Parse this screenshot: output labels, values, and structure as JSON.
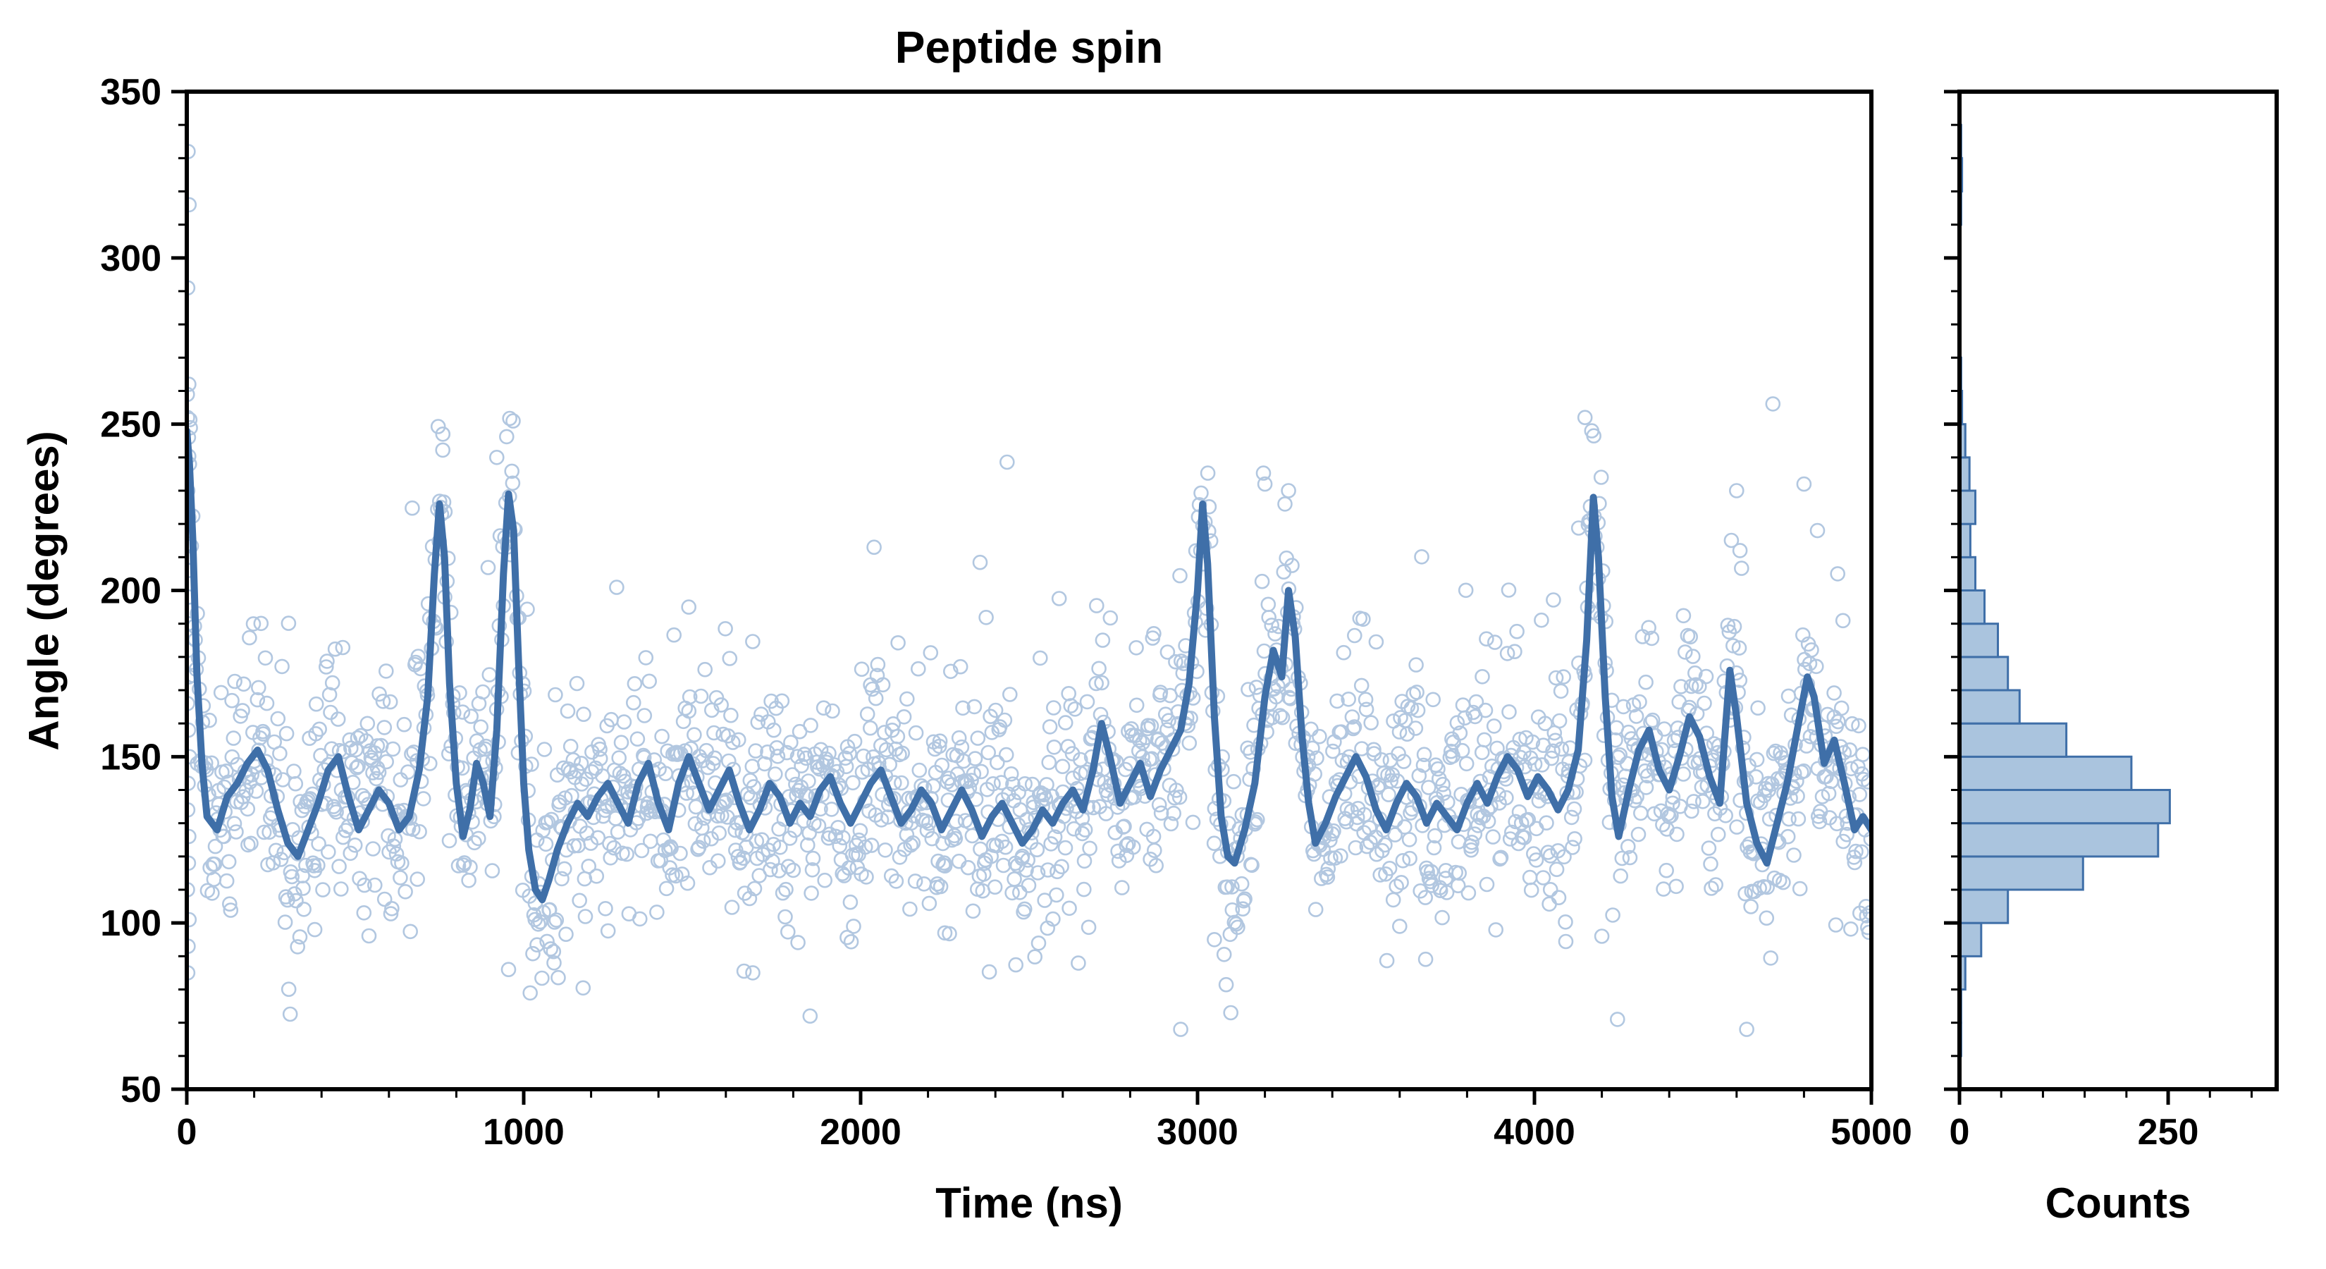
{
  "figure": {
    "title": "Peptide spin",
    "background": "#ffffff"
  },
  "colors": {
    "scatter_edge": "#7fa3cd",
    "trend_line": "#3f6fa8",
    "hist_fill": "#aac4de",
    "hist_edge": "#3f6fa8",
    "axis": "#000000"
  },
  "main_plot": {
    "xlabel": "Time (ns)",
    "ylabel": "Angle (degrees)",
    "xlim": [
      0,
      5000
    ],
    "ylim": [
      50,
      350
    ],
    "xticks": [
      0,
      1000,
      2000,
      3000,
      4000,
      5000
    ],
    "yticks": [
      50,
      100,
      150,
      200,
      250,
      300,
      350
    ],
    "x_minor_step": 200,
    "y_minor_step": 10
  },
  "hist_plot": {
    "xlabel": "Counts",
    "xlim": [
      0,
      380
    ],
    "xticks": [
      0,
      250
    ],
    "x_minor_step": 50
  },
  "chart_data": {
    "type": "scatter",
    "title": "Peptide spin",
    "xlabel": "Time (ns)",
    "ylabel": "Angle (degrees)",
    "xlim": [
      0,
      5000
    ],
    "ylim": [
      50,
      350
    ],
    "legend": "none",
    "grid": false,
    "series_description": "Raw angle samples (hollow circles), running-average trend line, and marginal histogram of angle counts",
    "line_series": {
      "name": "smoothed-angle",
      "points": [
        [
          0,
          248
        ],
        [
          8,
          238
        ],
        [
          18,
          215
        ],
        [
          30,
          175
        ],
        [
          45,
          148
        ],
        [
          60,
          132
        ],
        [
          90,
          128
        ],
        [
          120,
          138
        ],
        [
          150,
          142
        ],
        [
          180,
          148
        ],
        [
          210,
          152
        ],
        [
          240,
          146
        ],
        [
          270,
          134
        ],
        [
          300,
          124
        ],
        [
          330,
          120
        ],
        [
          360,
          128
        ],
        [
          390,
          136
        ],
        [
          420,
          146
        ],
        [
          450,
          150
        ],
        [
          480,
          138
        ],
        [
          510,
          128
        ],
        [
          540,
          134
        ],
        [
          570,
          140
        ],
        [
          600,
          136
        ],
        [
          630,
          128
        ],
        [
          660,
          132
        ],
        [
          690,
          146
        ],
        [
          715,
          168
        ],
        [
          735,
          205
        ],
        [
          750,
          226
        ],
        [
          765,
          210
        ],
        [
          780,
          172
        ],
        [
          800,
          142
        ],
        [
          820,
          126
        ],
        [
          840,
          134
        ],
        [
          860,
          148
        ],
        [
          880,
          142
        ],
        [
          900,
          132
        ],
        [
          920,
          158
        ],
        [
          940,
          205
        ],
        [
          955,
          229
        ],
        [
          970,
          218
        ],
        [
          985,
          178
        ],
        [
          1000,
          142
        ],
        [
          1015,
          122
        ],
        [
          1035,
          110
        ],
        [
          1055,
          107
        ],
        [
          1075,
          113
        ],
        [
          1100,
          122
        ],
        [
          1130,
          130
        ],
        [
          1160,
          136
        ],
        [
          1190,
          132
        ],
        [
          1220,
          138
        ],
        [
          1250,
          142
        ],
        [
          1280,
          136
        ],
        [
          1310,
          130
        ],
        [
          1340,
          142
        ],
        [
          1370,
          148
        ],
        [
          1400,
          136
        ],
        [
          1430,
          128
        ],
        [
          1460,
          142
        ],
        [
          1490,
          150
        ],
        [
          1520,
          142
        ],
        [
          1550,
          134
        ],
        [
          1580,
          140
        ],
        [
          1610,
          146
        ],
        [
          1640,
          136
        ],
        [
          1670,
          128
        ],
        [
          1700,
          134
        ],
        [
          1730,
          142
        ],
        [
          1760,
          138
        ],
        [
          1790,
          130
        ],
        [
          1820,
          136
        ],
        [
          1850,
          132
        ],
        [
          1880,
          140
        ],
        [
          1910,
          144
        ],
        [
          1940,
          136
        ],
        [
          1970,
          130
        ],
        [
          2000,
          136
        ],
        [
          2030,
          142
        ],
        [
          2060,
          146
        ],
        [
          2090,
          138
        ],
        [
          2120,
          130
        ],
        [
          2150,
          134
        ],
        [
          2180,
          140
        ],
        [
          2210,
          136
        ],
        [
          2240,
          128
        ],
        [
          2270,
          134
        ],
        [
          2300,
          140
        ],
        [
          2330,
          134
        ],
        [
          2360,
          126
        ],
        [
          2390,
          132
        ],
        [
          2420,
          136
        ],
        [
          2450,
          130
        ],
        [
          2480,
          124
        ],
        [
          2510,
          128
        ],
        [
          2540,
          134
        ],
        [
          2570,
          130
        ],
        [
          2600,
          136
        ],
        [
          2630,
          140
        ],
        [
          2660,
          134
        ],
        [
          2690,
          146
        ],
        [
          2715,
          160
        ],
        [
          2740,
          150
        ],
        [
          2770,
          136
        ],
        [
          2800,
          142
        ],
        [
          2830,
          148
        ],
        [
          2860,
          138
        ],
        [
          2890,
          146
        ],
        [
          2920,
          152
        ],
        [
          2950,
          158
        ],
        [
          2975,
          172
        ],
        [
          3000,
          200
        ],
        [
          3015,
          226
        ],
        [
          3030,
          208
        ],
        [
          3050,
          162
        ],
        [
          3070,
          132
        ],
        [
          3090,
          120
        ],
        [
          3110,
          118
        ],
        [
          3140,
          128
        ],
        [
          3170,
          142
        ],
        [
          3200,
          168
        ],
        [
          3225,
          182
        ],
        [
          3250,
          174
        ],
        [
          3270,
          200
        ],
        [
          3290,
          186
        ],
        [
          3310,
          156
        ],
        [
          3330,
          136
        ],
        [
          3350,
          124
        ],
        [
          3380,
          130
        ],
        [
          3410,
          138
        ],
        [
          3440,
          144
        ],
        [
          3470,
          150
        ],
        [
          3500,
          144
        ],
        [
          3530,
          134
        ],
        [
          3560,
          128
        ],
        [
          3590,
          136
        ],
        [
          3620,
          142
        ],
        [
          3650,
          138
        ],
        [
          3680,
          130
        ],
        [
          3710,
          136
        ],
        [
          3740,
          132
        ],
        [
          3770,
          128
        ],
        [
          3800,
          136
        ],
        [
          3830,
          142
        ],
        [
          3860,
          136
        ],
        [
          3890,
          144
        ],
        [
          3920,
          150
        ],
        [
          3950,
          146
        ],
        [
          3980,
          138
        ],
        [
          4010,
          144
        ],
        [
          4040,
          140
        ],
        [
          4070,
          134
        ],
        [
          4100,
          140
        ],
        [
          4130,
          152
        ],
        [
          4155,
          185
        ],
        [
          4175,
          228
        ],
        [
          4190,
          210
        ],
        [
          4210,
          168
        ],
        [
          4230,
          138
        ],
        [
          4250,
          126
        ],
        [
          4280,
          140
        ],
        [
          4310,
          152
        ],
        [
          4340,
          158
        ],
        [
          4370,
          146
        ],
        [
          4400,
          140
        ],
        [
          4430,
          150
        ],
        [
          4460,
          162
        ],
        [
          4490,
          156
        ],
        [
          4520,
          144
        ],
        [
          4550,
          136
        ],
        [
          4580,
          176
        ],
        [
          4600,
          162
        ],
        [
          4630,
          136
        ],
        [
          4660,
          124
        ],
        [
          4690,
          118
        ],
        [
          4720,
          130
        ],
        [
          4750,
          142
        ],
        [
          4780,
          158
        ],
        [
          4810,
          174
        ],
        [
          4830,
          168
        ],
        [
          4860,
          148
        ],
        [
          4890,
          155
        ],
        [
          4920,
          142
        ],
        [
          4950,
          128
        ],
        [
          4975,
          132
        ],
        [
          5000,
          128
        ]
      ]
    },
    "scatter_spec": {
      "name": "angle-samples",
      "n_points": 1900,
      "noise_sigma": 17,
      "up_tail_prob": 0.025,
      "up_tail_max": 85,
      "down_tail_prob": 0.01,
      "down_tail_max": 40,
      "seed": 42
    },
    "scatter_outliers": [
      [
        4,
        332
      ],
      [
        7,
        316
      ],
      [
        3,
        291
      ],
      [
        6,
        262
      ],
      [
        2,
        252
      ],
      [
        5,
        246
      ],
      [
        8,
        238
      ],
      [
        3,
        230
      ],
      [
        6,
        222
      ],
      [
        2,
        214
      ],
      [
        5,
        206
      ],
      [
        7,
        198
      ],
      [
        4,
        190
      ],
      [
        3,
        182
      ],
      [
        6,
        174
      ],
      [
        2,
        166
      ],
      [
        5,
        158
      ],
      [
        8,
        150
      ],
      [
        4,
        142
      ],
      [
        3,
        134
      ],
      [
        6,
        126
      ],
      [
        5,
        118
      ],
      [
        2,
        110
      ],
      [
        7,
        101
      ],
      [
        4,
        93
      ],
      [
        3,
        85
      ],
      [
        2040,
        213
      ],
      [
        1490,
        195
      ],
      [
        2870,
        187
      ],
      [
        760,
        247
      ],
      [
        920,
        240
      ],
      [
        3200,
        232
      ],
      [
        3270,
        230
      ],
      [
        4150,
        252
      ],
      [
        4170,
        248
      ],
      [
        4600,
        230
      ],
      [
        4610,
        212
      ],
      [
        4800,
        232
      ],
      [
        4840,
        218
      ],
      [
        4900,
        205
      ],
      [
        1850,
        72
      ],
      [
        2950,
        68
      ],
      [
        4630,
        68
      ],
      [
        1680,
        85
      ],
      [
        1090,
        88
      ],
      [
        955,
        86
      ],
      [
        380,
        98
      ],
      [
        2250,
        97
      ],
      [
        3050,
        95
      ],
      [
        3600,
        99
      ],
      [
        4200,
        96
      ]
    ],
    "histogram": {
      "orientation": "horizontal",
      "bin_start": 50,
      "bin_width": 10,
      "counts": [
        0,
        2,
        2,
        7,
        26,
        58,
        148,
        238,
        252,
        206,
        128,
        72,
        58,
        46,
        30,
        19,
        13,
        19,
        12,
        7,
        3,
        2,
        1,
        1,
        1,
        1,
        2,
        3,
        2,
        0
      ],
      "xlabel": "Counts",
      "xlim": [
        0,
        380
      ],
      "xticks": [
        0,
        250
      ]
    }
  }
}
